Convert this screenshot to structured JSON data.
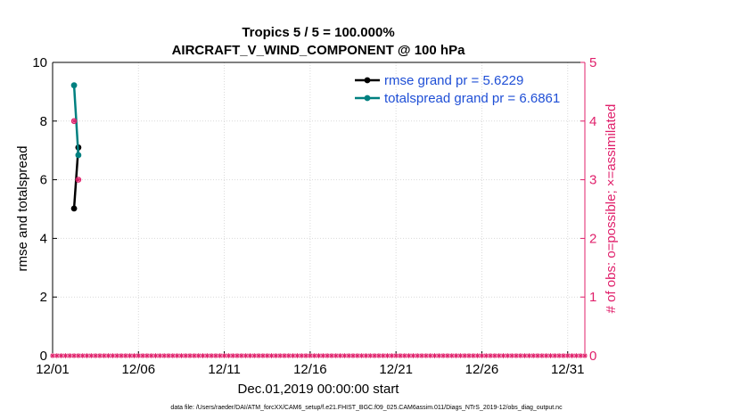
{
  "chart_data": {
    "type": "line",
    "title": "Tropics 5 / 5 = 100.000%",
    "subtitle": "AIRCRAFT_V_WIND_COMPONENT @ 100 hPa",
    "xlabel": "Dec.01,2019 00:00:00 start",
    "ylabel_left": "rmse and totalspread",
    "ylabel_right": "# of obs: o=possible; ×=assimilated",
    "footer": "data file: /Users/raeder/DAI/ATM_forcXX/CAM6_setup/f.e21.FHIST_BGC.f09_025.CAM6assim.011/Diags_NTrS_2019-12/obs_diag_output.nc",
    "xlim": [
      0,
      31
    ],
    "ylim_left": [
      0,
      10
    ],
    "ylim_right": [
      0,
      5
    ],
    "x_ticks": [
      0,
      5,
      10,
      15,
      20,
      25,
      30
    ],
    "x_tick_labels": [
      "12/01",
      "12/06",
      "12/11",
      "12/16",
      "12/21",
      "12/26",
      "12/31"
    ],
    "y_ticks_left": [
      0,
      2,
      4,
      6,
      8,
      10
    ],
    "y_tick_labels_left": [
      "0",
      "2",
      "4",
      "6",
      "8",
      "10"
    ],
    "y_ticks_right": [
      0,
      1,
      2,
      3,
      4,
      5
    ],
    "y_tick_labels_right": [
      "0",
      "1",
      "2",
      "3",
      "4",
      "5"
    ],
    "grid": true,
    "legend_position": "top-right",
    "colors": {
      "rmse": "#000000",
      "totalspread": "#008080",
      "obs": "#e0206b",
      "legend_text": "#1f4fd6",
      "axis": "#000000"
    },
    "series": [
      {
        "name": "rmse grand pr = 5.6229",
        "axis": "left",
        "x": [
          1.25,
          1.5
        ],
        "y": [
          5.02,
          7.1
        ]
      },
      {
        "name": "totalspread grand pr = 6.6861",
        "axis": "left",
        "x": [
          1.25,
          1.5
        ],
        "y": [
          9.22,
          6.84
        ]
      }
    ],
    "obs_special": [
      {
        "x": 1.25,
        "y": 4
      },
      {
        "x": 1.5,
        "y": 3
      }
    ],
    "obs_baseline": {
      "x_start": 0,
      "x_end": 31,
      "step": 0.25,
      "y": 0
    }
  }
}
